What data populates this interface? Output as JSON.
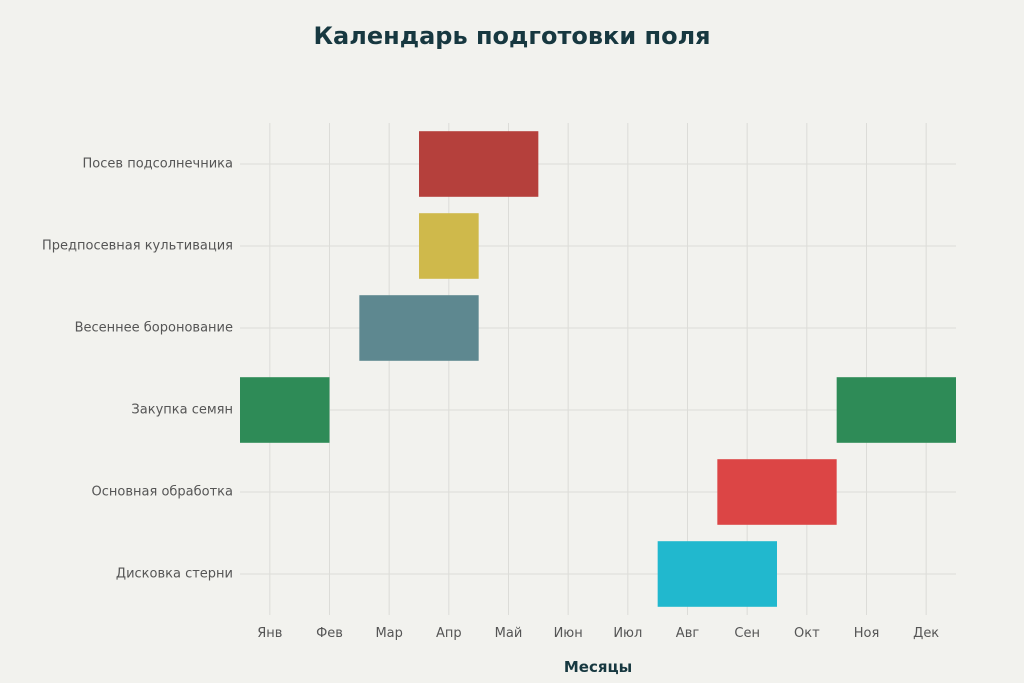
{
  "chart_data": {
    "type": "gantt",
    "title": "Календарь подготовки поля",
    "xlabel": "Месяцы",
    "ylabel": "",
    "x_ticks": [
      "Янв",
      "Фев",
      "Мар",
      "Апр",
      "Май",
      "Июн",
      "Июл",
      "Авг",
      "Сен",
      "Окт",
      "Ноя",
      "Дек"
    ],
    "xlim": [
      0.5,
      12.5
    ],
    "grid": true,
    "categories": [
      "Посев подсолнечника",
      "Предпосевная культивация",
      "Весеннее боронование",
      "Закупка семян",
      "Основная обработка",
      "Дисковка стерни"
    ],
    "tasks": [
      {
        "task": "Посев подсолнечника",
        "start": 3.5,
        "end": 5.5,
        "color": "#b5403c"
      },
      {
        "task": "Предпосевная культивация",
        "start": 3.5,
        "end": 4.5,
        "color": "#cfb94b"
      },
      {
        "task": "Весеннее боронование",
        "start": 2.5,
        "end": 4.5,
        "color": "#5e8890"
      },
      {
        "task": "Закупка семян",
        "start": 0.5,
        "end": 2.0,
        "color": "#2e8b57"
      },
      {
        "task": "Закупка семян",
        "start": 10.5,
        "end": 12.5,
        "color": "#2e8b57"
      },
      {
        "task": "Основная обработка",
        "start": 8.5,
        "end": 10.5,
        "color": "#dc4545"
      },
      {
        "task": "Дисковка стерни",
        "start": 7.5,
        "end": 9.5,
        "color": "#21b8ce"
      }
    ]
  }
}
